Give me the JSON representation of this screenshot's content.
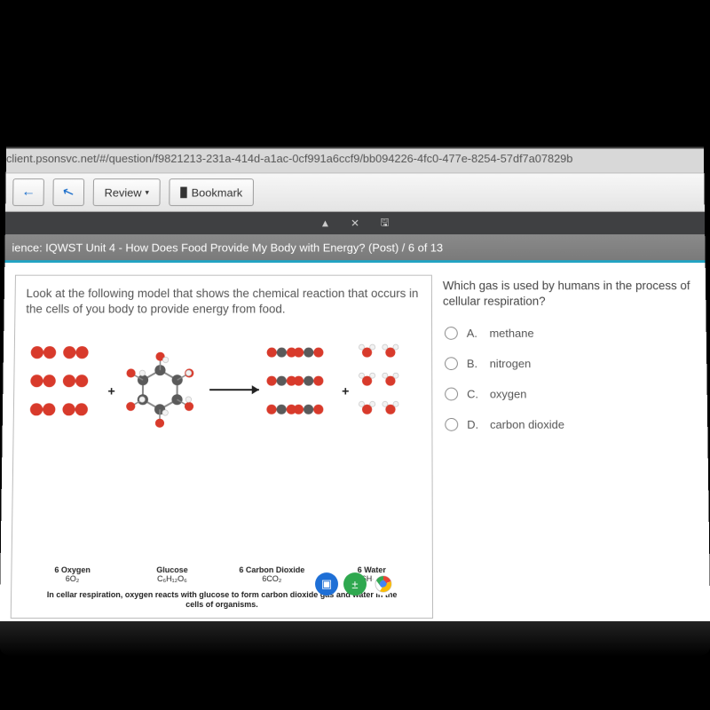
{
  "url": "client.psonsvc.net/#/question/f9821213-231a-414d-a1ac-0cf991a6ccf9/bb094226-4fc0-477e-8254-57df7a07829b",
  "toolbar": {
    "back_icon": "←",
    "pointer_icon": "↖",
    "review_label": "Review",
    "review_caret": "▾",
    "bookmark_icon": "▉",
    "bookmark_label": "Bookmark"
  },
  "strip": {
    "cursor": "▲",
    "close": "✕",
    "save": "🖫"
  },
  "breadcrumb": "ience: IQWST Unit 4 - How Does Food Provide My Body with Energy? (Post)  /  6 of 13",
  "prompt": "Look at the following model that shows the chemical reaction that occurs in the cells of you body to provide energy from food.",
  "question": "Which gas is used by humans in the process of cellular respiration?",
  "choices": [
    {
      "letter": "A.",
      "text": "methane"
    },
    {
      "letter": "B.",
      "text": "nitrogen"
    },
    {
      "letter": "C.",
      "text": "oxygen"
    },
    {
      "letter": "D.",
      "text": "carbon dioxide"
    }
  ],
  "reagents": [
    {
      "name": "6 Oxygen",
      "formula": "6O₂"
    },
    {
      "name": "Glucose",
      "formula": "C₆H₁₂O₆"
    },
    {
      "name": "6 Carbon Dioxide",
      "formula": "6CO₂"
    },
    {
      "name": "6 Water",
      "formula": "6H₂O"
    }
  ],
  "caption": "In cellar respiration, oxygen reacts with glucose to form carbon dioxide gas and water in the cells of organisms.",
  "colors": {
    "oxygen": "#d83a2b",
    "carbon": "#5a5a5a",
    "hydrogen": "#f2f2f2",
    "hydrogen_stroke": "#bdbdbd",
    "arrow": "#222222"
  },
  "dock": [
    {
      "bg": "#1e6fd6",
      "glyph": "▣"
    },
    {
      "bg": "#2fa84f",
      "glyph": "±"
    },
    {
      "bg": "#ffffff",
      "glyph": "",
      "chrome": true
    }
  ]
}
